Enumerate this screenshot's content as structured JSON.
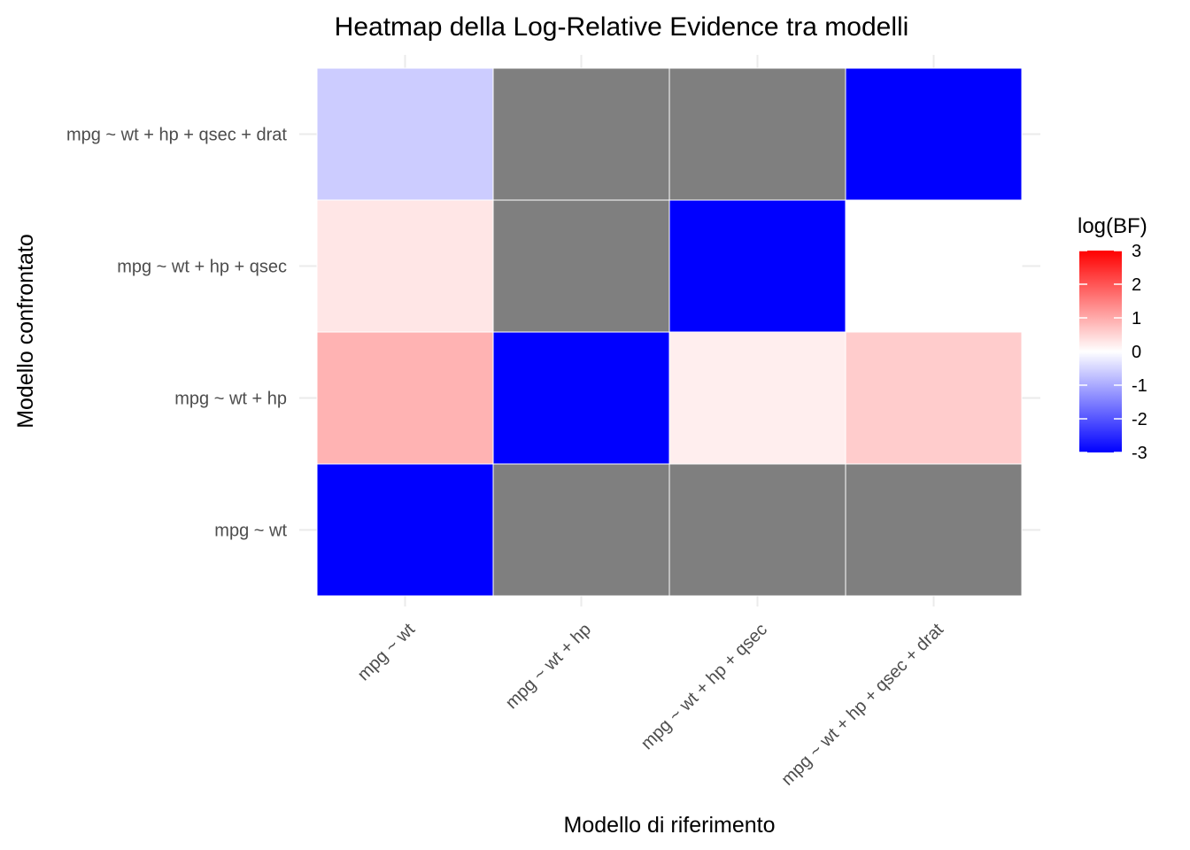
{
  "chart_data": {
    "type": "heatmap",
    "title": "Heatmap della Log-Relative Evidence tra modelli",
    "xlabel": "Modello di riferimento",
    "ylabel": "Modello confrontato",
    "x_categories": [
      "mpg ~ wt",
      "mpg ~ wt + hp",
      "mpg ~ wt + hp + qsec",
      "mpg ~ wt + hp + qsec + drat"
    ],
    "y_categories": [
      "mpg ~ wt",
      "mpg ~ wt + hp",
      "mpg ~ wt + hp + qsec",
      "mpg ~ wt + hp + qsec + drat"
    ],
    "cells": [
      {
        "x": "mpg ~ wt",
        "y": "mpg ~ wt",
        "value": -3
      },
      {
        "x": "mpg ~ wt + hp",
        "y": "mpg ~ wt",
        "value": null
      },
      {
        "x": "mpg ~ wt + hp + qsec",
        "y": "mpg ~ wt",
        "value": null
      },
      {
        "x": "mpg ~ wt + hp + qsec + drat",
        "y": "mpg ~ wt",
        "value": null
      },
      {
        "x": "mpg ~ wt",
        "y": "mpg ~ wt + hp",
        "value": 0.9
      },
      {
        "x": "mpg ~ wt + hp",
        "y": "mpg ~ wt + hp",
        "value": -3
      },
      {
        "x": "mpg ~ wt + hp + qsec",
        "y": "mpg ~ wt + hp",
        "value": 0.2
      },
      {
        "x": "mpg ~ wt + hp + qsec + drat",
        "y": "mpg ~ wt + hp",
        "value": 0.6
      },
      {
        "x": "mpg ~ wt",
        "y": "mpg ~ wt + hp + qsec",
        "value": 0.3
      },
      {
        "x": "mpg ~ wt + hp",
        "y": "mpg ~ wt + hp + qsec",
        "value": null
      },
      {
        "x": "mpg ~ wt + hp + qsec",
        "y": "mpg ~ wt + hp + qsec",
        "value": -3
      },
      {
        "x": "mpg ~ wt + hp + qsec + drat",
        "y": "mpg ~ wt + hp + qsec",
        "value": 0
      },
      {
        "x": "mpg ~ wt",
        "y": "mpg ~ wt + hp + qsec + drat",
        "value": -0.6
      },
      {
        "x": "mpg ~ wt + hp",
        "y": "mpg ~ wt + hp + qsec + drat",
        "value": null
      },
      {
        "x": "mpg ~ wt + hp + qsec",
        "y": "mpg ~ wt + hp + qsec + drat",
        "value": null
      },
      {
        "x": "mpg ~ wt + hp + qsec + drat",
        "y": "mpg ~ wt + hp + qsec + drat",
        "value": -3
      }
    ],
    "legend": {
      "title": "log(BF)",
      "ticks": [
        3,
        2,
        1,
        0,
        -1,
        -2,
        -3
      ],
      "range": [
        -3,
        3
      ],
      "low_color": "#0000ff",
      "mid_color": "#ffffff",
      "high_color": "#ff0000",
      "na_color": "#7f7f7f",
      "placement": "right"
    },
    "grid": true
  }
}
